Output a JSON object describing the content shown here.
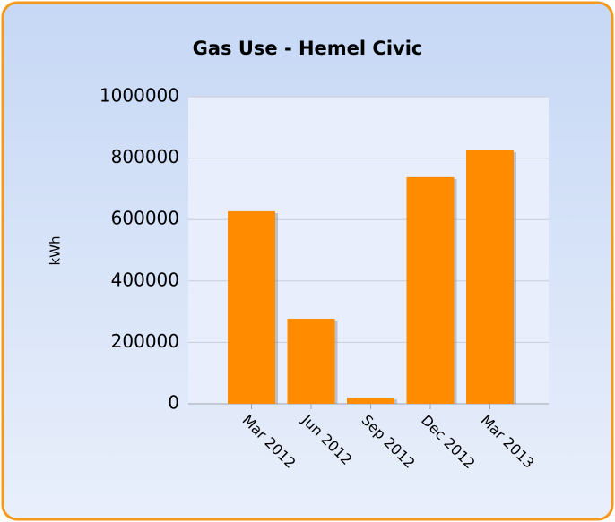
{
  "chart_data": {
    "type": "bar",
    "title": "Gas Use - Hemel Civic",
    "y_label": "kWh",
    "categories": [
      "Mar 2012",
      "Jun 2012",
      "Sep 2012",
      "Dec 2012",
      "Mar 2013"
    ],
    "values": [
      627000,
      277000,
      20000,
      738000,
      825000
    ],
    "color": "#ff8c00",
    "ylim": [
      0,
      1000000
    ],
    "yticks": [
      0,
      200000,
      400000,
      600000,
      800000,
      1000000
    ],
    "grid": true
  }
}
